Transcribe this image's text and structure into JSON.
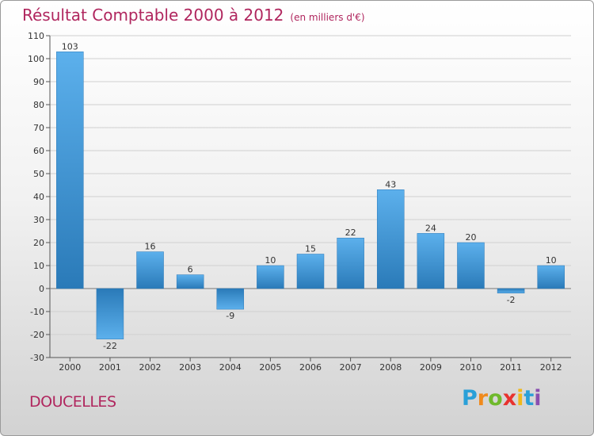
{
  "chart_data": {
    "type": "bar",
    "title": "Résultat Comptable 2000 à 2012",
    "subtitle": "(en milliers d'€)",
    "categories": [
      "2000",
      "2001",
      "2002",
      "2003",
      "2004",
      "2005",
      "2006",
      "2007",
      "2008",
      "2009",
      "2010",
      "2011",
      "2012"
    ],
    "values": [
      103,
      -22,
      16,
      6,
      -9,
      10,
      15,
      22,
      43,
      24,
      20,
      -2,
      10
    ],
    "yticks": [
      -30,
      -20,
      -10,
      0,
      10,
      20,
      30,
      40,
      50,
      60,
      70,
      80,
      90,
      100,
      110
    ],
    "ylim": [
      -30,
      110
    ],
    "xlabel": "",
    "ylabel": "",
    "bar_color": "#3a8fd0"
  },
  "location": "DOUCELLES",
  "brand": {
    "letters": [
      "P",
      "r",
      "o",
      "x",
      "i",
      "t",
      "i"
    ],
    "colors": [
      "#2aa0d8",
      "#f08a1c",
      "#6fb92c",
      "#e8322e",
      "#f0b81c",
      "#2aa0d8",
      "#8a4fb0"
    ]
  }
}
